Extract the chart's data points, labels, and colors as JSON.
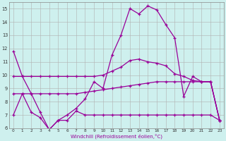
{
  "xlabel": "Windchill (Refroidissement éolien,°C)",
  "bg_color": "#cef0ee",
  "line_color": "#990099",
  "grid_color": "#b0b0b0",
  "xlim": [
    -0.5,
    23.5
  ],
  "ylim": [
    6,
    15.5
  ],
  "xticks": [
    0,
    1,
    2,
    3,
    4,
    5,
    6,
    7,
    8,
    9,
    10,
    11,
    12,
    13,
    14,
    15,
    16,
    17,
    18,
    19,
    20,
    21,
    22,
    23
  ],
  "yticks": [
    6,
    7,
    8,
    9,
    10,
    11,
    12,
    13,
    14,
    15
  ],
  "line1_x": [
    0,
    1,
    2,
    3,
    4,
    5,
    6,
    7,
    8,
    9,
    10,
    11,
    12,
    13,
    14,
    15,
    16,
    17,
    18,
    19,
    20,
    21,
    22,
    23
  ],
  "line1_y": [
    11.8,
    9.9,
    8.6,
    7.2,
    5.9,
    6.6,
    7.0,
    7.5,
    8.2,
    9.5,
    9.0,
    11.5,
    13.0,
    15.0,
    14.6,
    15.2,
    14.9,
    13.8,
    12.8,
    8.4,
    9.9,
    9.5,
    9.5,
    6.6
  ],
  "line2_x": [
    0,
    1,
    2,
    3,
    4,
    5,
    6,
    7,
    8,
    9,
    10,
    11,
    12,
    13,
    14,
    15,
    16,
    17,
    18,
    19,
    20,
    21,
    22,
    23
  ],
  "line2_y": [
    9.9,
    9.9,
    9.9,
    9.9,
    9.9,
    9.9,
    9.9,
    9.9,
    9.9,
    9.9,
    10.0,
    10.3,
    10.6,
    11.1,
    11.2,
    11.0,
    10.9,
    10.7,
    10.1,
    9.9,
    9.6,
    9.5,
    9.5,
    6.6
  ],
  "line3_x": [
    0,
    1,
    2,
    3,
    4,
    5,
    6,
    7,
    8,
    9,
    10,
    11,
    12,
    13,
    14,
    15,
    16,
    17,
    18,
    19,
    20,
    21,
    22,
    23
  ],
  "line3_y": [
    8.6,
    8.6,
    8.6,
    8.6,
    8.6,
    8.6,
    8.6,
    8.6,
    8.7,
    8.8,
    8.9,
    9.0,
    9.1,
    9.2,
    9.3,
    9.4,
    9.5,
    9.5,
    9.5,
    9.5,
    9.5,
    9.5,
    9.5,
    6.6
  ],
  "line4_x": [
    0,
    1,
    2,
    3,
    4,
    5,
    6,
    7,
    8,
    9,
    10,
    11,
    12,
    13,
    14,
    15,
    16,
    17,
    18,
    19,
    20,
    21,
    22,
    23
  ],
  "line4_y": [
    7.0,
    8.6,
    7.2,
    6.8,
    5.9,
    6.6,
    6.6,
    7.3,
    7.0,
    7.0,
    7.0,
    7.0,
    7.0,
    7.0,
    7.0,
    7.0,
    7.0,
    7.0,
    7.0,
    7.0,
    7.0,
    7.0,
    7.0,
    6.6
  ]
}
